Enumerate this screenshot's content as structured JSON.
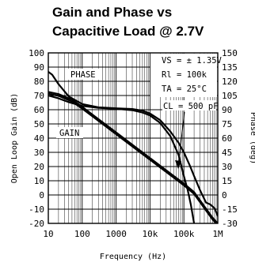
{
  "chart_data": {
    "type": "line",
    "title_line1": "Gain and Phase vs",
    "title_line2": "Capacitive Load @ 2.7V",
    "xlabel": "Frequency (Hz)",
    "ylabel_left": "Open Loop Gain (dB)",
    "ylabel_right": "Phase (deg)",
    "x_scale": "log",
    "xlim": [
      10,
      1000000
    ],
    "ylim_left": [
      -20,
      100
    ],
    "ylim_right": [
      -30,
      150
    ],
    "x_ticks": [
      {
        "value": 10,
        "label": "10"
      },
      {
        "value": 100,
        "label": "100"
      },
      {
        "value": 1000,
        "label": "1000"
      },
      {
        "value": 10000,
        "label": "10k"
      },
      {
        "value": 100000,
        "label": "100k"
      },
      {
        "value": 1000000,
        "label": "1M"
      }
    ],
    "y_ticks_left": [
      "100",
      "90",
      "80",
      "70",
      "60",
      "50",
      "40",
      "30",
      "20",
      "10",
      "0",
      "-10",
      "-20"
    ],
    "y_ticks_right": [
      "150",
      "135",
      "120",
      "105",
      "90",
      "75",
      "60",
      "45",
      "30",
      "15",
      "0",
      "-15",
      "-30"
    ],
    "grid": true,
    "labels": {
      "phase": "PHASE",
      "gain": "GAIN",
      "conditions": [
        "VS = ± 1.35V",
        "Rl = 100k",
        "TA = 25°C"
      ],
      "cl": "CL = 500 pF"
    },
    "series": [
      {
        "axis": "right",
        "points": [
          [
            10,
            130
          ],
          [
            13,
            127
          ],
          [
            20,
            117
          ],
          [
            40,
            104
          ],
          [
            100,
            96
          ],
          [
            300,
            92.5
          ],
          [
            1000,
            91.5
          ],
          [
            3000,
            90.8
          ],
          [
            6000,
            89
          ],
          [
            10000,
            86
          ],
          [
            20000,
            79
          ],
          [
            40000,
            67
          ],
          [
            70000,
            55
          ],
          [
            100000,
            45
          ],
          [
            150000,
            31
          ],
          [
            200000,
            20
          ],
          [
            300000,
            5
          ],
          [
            450000,
            -8
          ],
          [
            600000,
            -10
          ],
          [
            800000,
            -14
          ],
          [
            1000000,
            -22
          ]
        ]
      },
      {
        "axis": "right",
        "points": [
          [
            10,
            105
          ],
          [
            20,
            102
          ],
          [
            40,
            98
          ],
          [
            100,
            94
          ],
          [
            300,
            92
          ],
          [
            1000,
            91
          ],
          [
            3000,
            89.5
          ],
          [
            6000,
            87
          ],
          [
            10000,
            84
          ],
          [
            20000,
            76
          ],
          [
            40000,
            62
          ],
          [
            70000,
            42
          ],
          [
            100000,
            20
          ],
          [
            130000,
            5
          ],
          [
            160000,
            -10
          ],
          [
            200000,
            -30
          ]
        ]
      },
      {
        "axis": "left",
        "points": [
          [
            10,
            72.5
          ],
          [
            20,
            71
          ],
          [
            50,
            67
          ],
          [
            100,
            62
          ],
          [
            1000,
            44
          ],
          [
            10000,
            26
          ],
          [
            100000,
            8
          ],
          [
            200000,
            2
          ],
          [
            400000,
            -8
          ],
          [
            700000,
            -16
          ],
          [
            1000000,
            -20
          ]
        ]
      },
      {
        "axis": "left",
        "points": [
          [
            10,
            72.5
          ],
          [
            20,
            71
          ],
          [
            50,
            67
          ],
          [
            100,
            62
          ],
          [
            1000,
            44
          ],
          [
            10000,
            26
          ],
          [
            100000,
            8
          ],
          [
            200000,
            2
          ],
          [
            400000,
            -8
          ],
          [
            700000,
            -16
          ],
          [
            1000000,
            -20
          ]
        ]
      }
    ]
  }
}
